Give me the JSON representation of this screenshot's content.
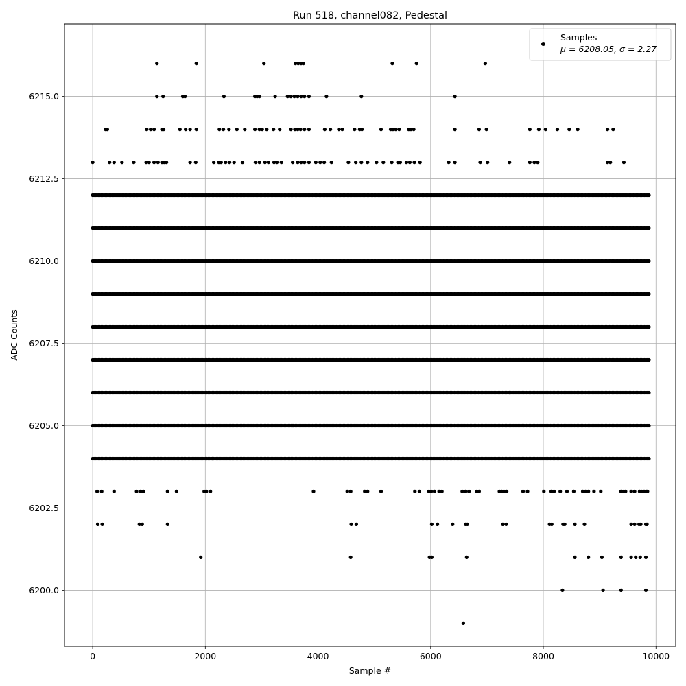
{
  "chart_data": {
    "type": "scatter",
    "title": "Run 518, channel082, Pedestal",
    "xlabel": "Sample #",
    "ylabel": "ADC Counts",
    "xlim": [
      -500,
      10350
    ],
    "ylim": [
      6198.3,
      6217.2
    ],
    "xticks": [
      0,
      2000,
      4000,
      6000,
      8000,
      10000
    ],
    "yticks": [
      6200.0,
      6202.5,
      6205.0,
      6207.5,
      6210.0,
      6212.5,
      6215.0
    ],
    "xtick_labels": [
      "0",
      "2000",
      "4000",
      "6000",
      "8000",
      "10000"
    ],
    "ytick_labels": [
      "6200.0",
      "6202.5",
      "6205.0",
      "6207.5",
      "6210.0",
      "6212.5",
      "6215.0"
    ],
    "grid": true,
    "legend_position": "top-right",
    "legend": {
      "series_name": "Samples",
      "stats_text": "μ = 6208.05, σ = 2.27"
    },
    "marker_color": "#000000",
    "series": [
      {
        "name": "Samples",
        "summary": {
          "mu": 6208.05,
          "sigma": 2.27,
          "n_samples": 9880
        },
        "levels": [
          {
            "y": 6199,
            "x": [
              6580
            ]
          },
          {
            "y": 6200,
            "x": [
              8340,
              9060,
              9380,
              9820
            ]
          },
          {
            "y": 6201,
            "x": [
              1920,
              4580,
              5980,
              6020,
              6640,
              8560,
              8800,
              9040,
              9380,
              9560,
              9640,
              9720,
              9820
            ]
          },
          {
            "y": 6202,
            "x": [
              90,
              170,
              830,
              880,
              1330,
              4590,
              4680,
              6020,
              6120,
              6390,
              6620,
              6650,
              7280,
              7340,
              8110,
              8150,
              8350,
              8380,
              8560,
              8730,
              9560,
              9620,
              9700,
              9730,
              9820,
              9840
            ]
          },
          {
            "y": 6203,
            "x": [
              80,
              160,
              380,
              780,
              850,
              900,
              1330,
              1490,
              1980,
              2020,
              2090,
              3920,
              4520,
              4580,
              4830,
              4880,
              5120,
              5720,
              5800,
              5970,
              6010,
              6070,
              6150,
              6200,
              6560,
              6620,
              6680,
              6820,
              6860,
              7220,
              7260,
              7300,
              7350,
              7640,
              7720,
              8010,
              8140,
              8190,
              8300,
              8420,
              8540,
              8700,
              8750,
              8800,
              8900,
              9020,
              9380,
              9430,
              9460,
              9560,
              9620,
              9710,
              9740,
              9790,
              9830,
              9850
            ]
          },
          {
            "y": 6204,
            "x": [
              2120
            ]
          },
          {
            "y": 6205,
            "x": [
              3560
            ]
          },
          {
            "y": 6206,
            "x": [
              7400
            ]
          },
          {
            "y": 6207,
            "x": [
              5900
            ]
          },
          {
            "y": 6208,
            "x": [
              8000
            ]
          },
          {
            "y": 6209,
            "x": [
              3000
            ]
          },
          {
            "y": 6210,
            "x": [
              6500
            ]
          },
          {
            "y": 6211,
            "x": [
              120
            ]
          },
          {
            "y": 6212,
            "x": [
              4310
            ]
          },
          {
            "y": 6213,
            "x": [
              0,
              300,
              380,
              520,
              730,
              950,
              1000,
              1090,
              1160,
              1230,
              1270,
              1310,
              1730,
              1830,
              2150,
              2240,
              2280,
              2360,
              2430,
              2510,
              2660,
              2890,
              2960,
              3060,
              3120,
              3220,
              3270,
              3350,
              3550,
              3640,
              3700,
              3760,
              3840,
              3960,
              4040,
              4110,
              4240,
              4540,
              4670,
              4770,
              4880,
              5040,
              5160,
              5310,
              5420,
              5460,
              5570,
              5630,
              5710,
              5810,
              6320,
              6430,
              6880,
              7010,
              7400,
              7760,
              7840,
              7900,
              9140,
              9190,
              9430
            ]
          },
          {
            "y": 6214,
            "x": [
              230,
              260,
              960,
              1030,
              1090,
              1230,
              1260,
              1550,
              1650,
              1730,
              1840,
              2250,
              2320,
              2420,
              2560,
              2700,
              2880,
              2960,
              3010,
              3090,
              3210,
              3320,
              3520,
              3590,
              3640,
              3690,
              3760,
              3840,
              4120,
              4220,
              4370,
              4430,
              4650,
              4740,
              4780,
              5120,
              5290,
              5330,
              5380,
              5440,
              5610,
              5650,
              5700,
              6430,
              6860,
              6990,
              7760,
              7920,
              8040,
              8250,
              8460,
              8610,
              9140,
              9240
            ]
          },
          {
            "y": 6215,
            "x": [
              1140,
              1250,
              1600,
              1640,
              2330,
              2880,
              2920,
              2960,
              3240,
              3460,
              3520,
              3580,
              3640,
              3700,
              3760,
              3840,
              4150,
              4770,
              6430
            ]
          },
          {
            "y": 6216,
            "x": [
              1140,
              1840,
              3040,
              3600,
              3650,
              3700,
              3740,
              5320,
              5750,
              6970
            ]
          }
        ],
        "dense_levels": {
          "y": [
            6204,
            6205,
            6206,
            6207,
            6208,
            6209,
            6210,
            6211,
            6212
          ],
          "x_range": [
            0,
            9880
          ],
          "sampled_x_step": 25
        }
      }
    ]
  }
}
